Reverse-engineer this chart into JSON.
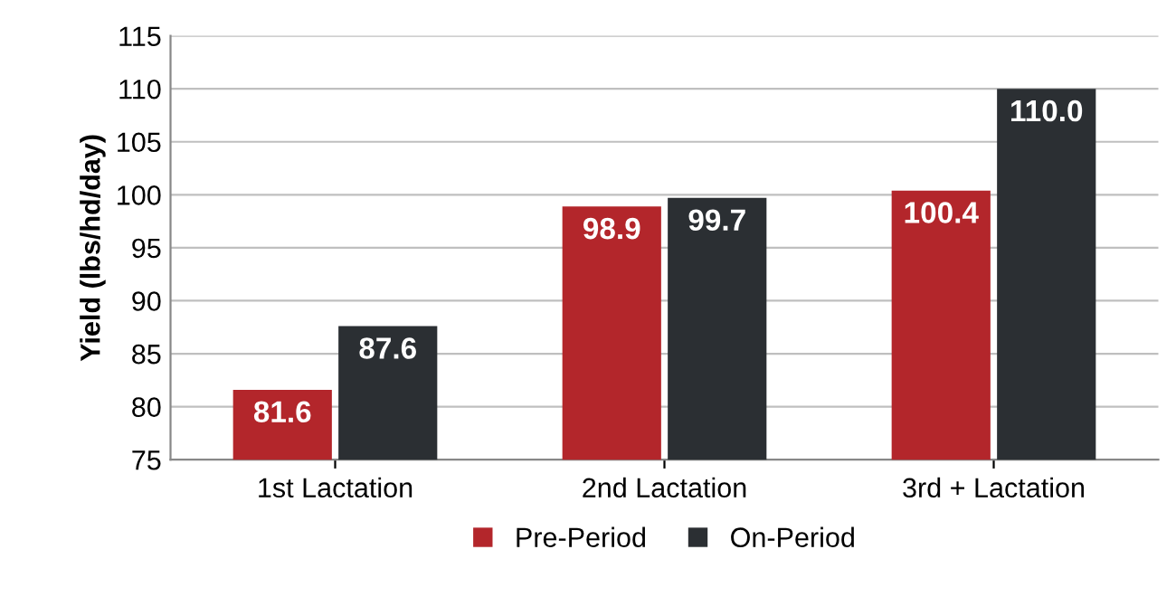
{
  "chart_data": {
    "type": "bar",
    "ylabel": "Yield (lbs/hd/day)",
    "categories": [
      "1st Lactation",
      "2nd Lactation",
      "3rd + Lactation"
    ],
    "series": [
      {
        "name": "Pre-Period",
        "color": "#b3262b",
        "values": [
          81.6,
          98.9,
          100.4
        ]
      },
      {
        "name": "On-Period",
        "color": "#2b2f33",
        "values": [
          87.6,
          99.7,
          110.0
        ]
      }
    ],
    "value_labels": [
      [
        "81.6",
        "98.9",
        "100.4"
      ],
      [
        "87.6",
        "99.7",
        "110.0"
      ]
    ],
    "ylim": [
      75,
      115
    ],
    "yticks": [
      75,
      80,
      85,
      90,
      95,
      100,
      105,
      110,
      115
    ],
    "grid": "y",
    "legend": "bottom"
  }
}
